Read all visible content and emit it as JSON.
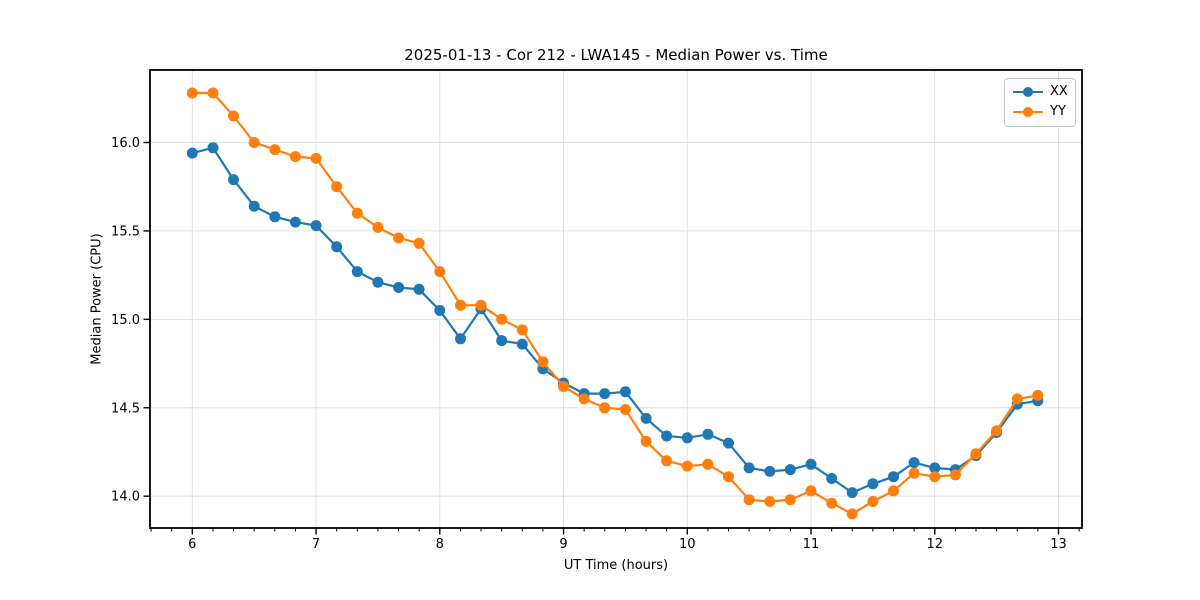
{
  "chart_data": {
    "type": "line",
    "title": "2025-01-13 - Cor 212 - LWA145 - Median Power vs. Time",
    "xlabel": "UT Time (hours)",
    "ylabel": "Median Power (CPU)",
    "xlim": [
      5.658,
      13.19
    ],
    "ylim": [
      13.82,
      16.41
    ],
    "xticks": [
      6,
      7,
      8,
      9,
      10,
      11,
      12,
      13
    ],
    "xtick_labels": [
      "6",
      "7",
      "8",
      "9",
      "10",
      "11",
      "12",
      "13"
    ],
    "yticks": [
      14.0,
      14.5,
      15.0,
      15.5,
      16.0
    ],
    "ytick_labels": [
      "14.0",
      "14.5",
      "15.0",
      "15.5",
      "16.0"
    ],
    "x_minor_per_major": 6,
    "grid": true,
    "grid_color": "#e0e0e0",
    "spine_color": "#000000",
    "legend_position": "upper right",
    "marker": "circle",
    "x": [
      6.0,
      6.167,
      6.333,
      6.5,
      6.667,
      6.833,
      7.0,
      7.167,
      7.333,
      7.5,
      7.667,
      7.833,
      8.0,
      8.167,
      8.333,
      8.5,
      8.667,
      8.833,
      9.0,
      9.167,
      9.333,
      9.5,
      9.667,
      9.833,
      10.0,
      10.167,
      10.333,
      10.5,
      10.667,
      10.833,
      11.0,
      11.167,
      11.333,
      11.5,
      11.667,
      11.833,
      12.0,
      12.167,
      12.333,
      12.5,
      12.667,
      12.833
    ],
    "series": [
      {
        "name": "XX",
        "color": "#1f77b4",
        "values": [
          15.94,
          15.97,
          15.79,
          15.64,
          15.58,
          15.55,
          15.53,
          15.41,
          15.27,
          15.21,
          15.18,
          15.17,
          15.05,
          14.89,
          15.06,
          14.88,
          14.86,
          14.72,
          14.64,
          14.58,
          14.58,
          14.59,
          14.44,
          14.34,
          14.33,
          14.35,
          14.3,
          14.16,
          14.14,
          14.15,
          14.18,
          14.1,
          14.02,
          14.07,
          14.11,
          14.19,
          14.16,
          14.15,
          14.23,
          14.36,
          14.52,
          14.54
        ]
      },
      {
        "name": "YY",
        "color": "#ff7f0e",
        "values": [
          16.28,
          16.28,
          16.15,
          16.0,
          15.96,
          15.92,
          15.91,
          15.75,
          15.6,
          15.52,
          15.46,
          15.43,
          15.27,
          15.08,
          15.08,
          15.0,
          14.94,
          14.76,
          14.62,
          14.55,
          14.5,
          14.49,
          14.31,
          14.2,
          14.17,
          14.18,
          14.11,
          13.98,
          13.97,
          13.98,
          14.03,
          13.96,
          13.9,
          13.97,
          14.03,
          14.13,
          14.11,
          14.12,
          14.24,
          14.37,
          14.55,
          14.57
        ]
      }
    ]
  }
}
